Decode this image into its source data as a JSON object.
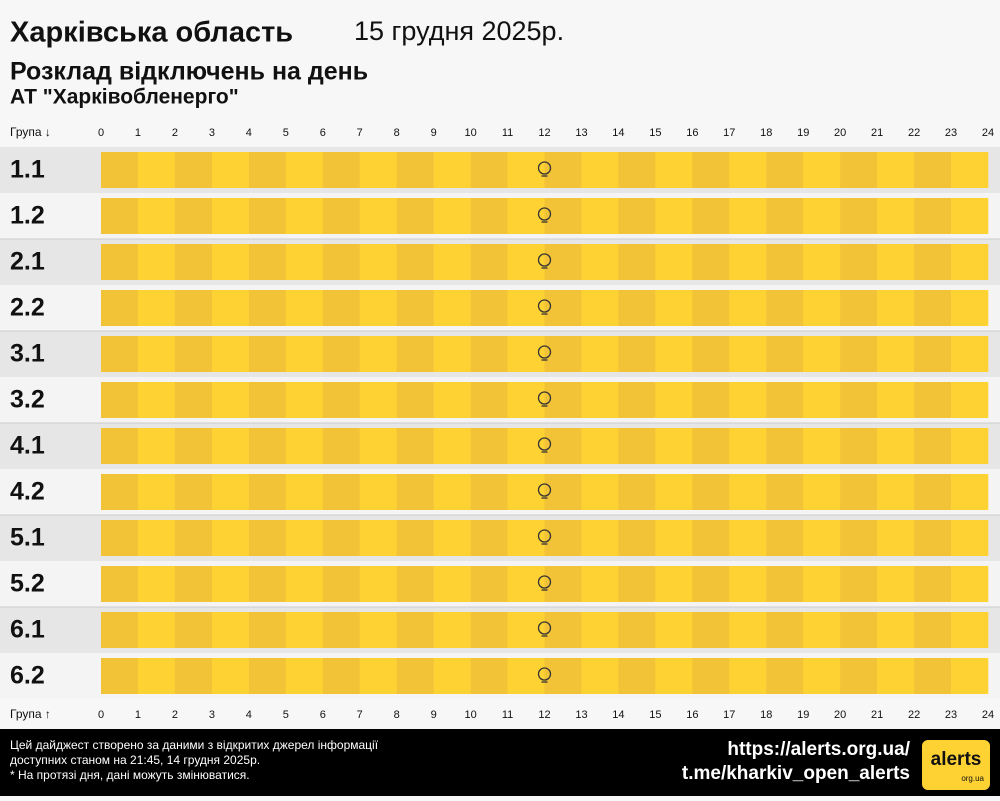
{
  "header": {
    "title": "Харківська область",
    "date": "15 грудня 2025р.",
    "subtitle": "Розклад відключень на день",
    "company": "АТ \"Харківобленерго\""
  },
  "table": {
    "group_header_top": "Група ↓",
    "group_header_bottom": "Група ↑",
    "hours": [
      "0",
      "1",
      "2",
      "3",
      "4",
      "5",
      "6",
      "7",
      "8",
      "9",
      "10",
      "11",
      "12",
      "13",
      "14",
      "15",
      "16",
      "17",
      "18",
      "19",
      "20",
      "21",
      "22",
      "23",
      "24"
    ],
    "groups": [
      "1.1",
      "1.2",
      "2.1",
      "2.2",
      "3.1",
      "3.2",
      "4.1",
      "4.2",
      "5.1",
      "5.2",
      "6.1",
      "6.2"
    ]
  },
  "footer": {
    "note_lines": [
      "Цей дайджест створено за даними з відкритих джерел інформації",
      "доступних станом на 21:45, 14 грудня 2025р.",
      "* На протязі дня, дані можуть змінюватися."
    ],
    "links": [
      "https://alerts.org.ua/",
      "t.me/kharkiv_open_alerts"
    ],
    "logo": "alerts",
    "logo_sub": "org.ua"
  }
}
